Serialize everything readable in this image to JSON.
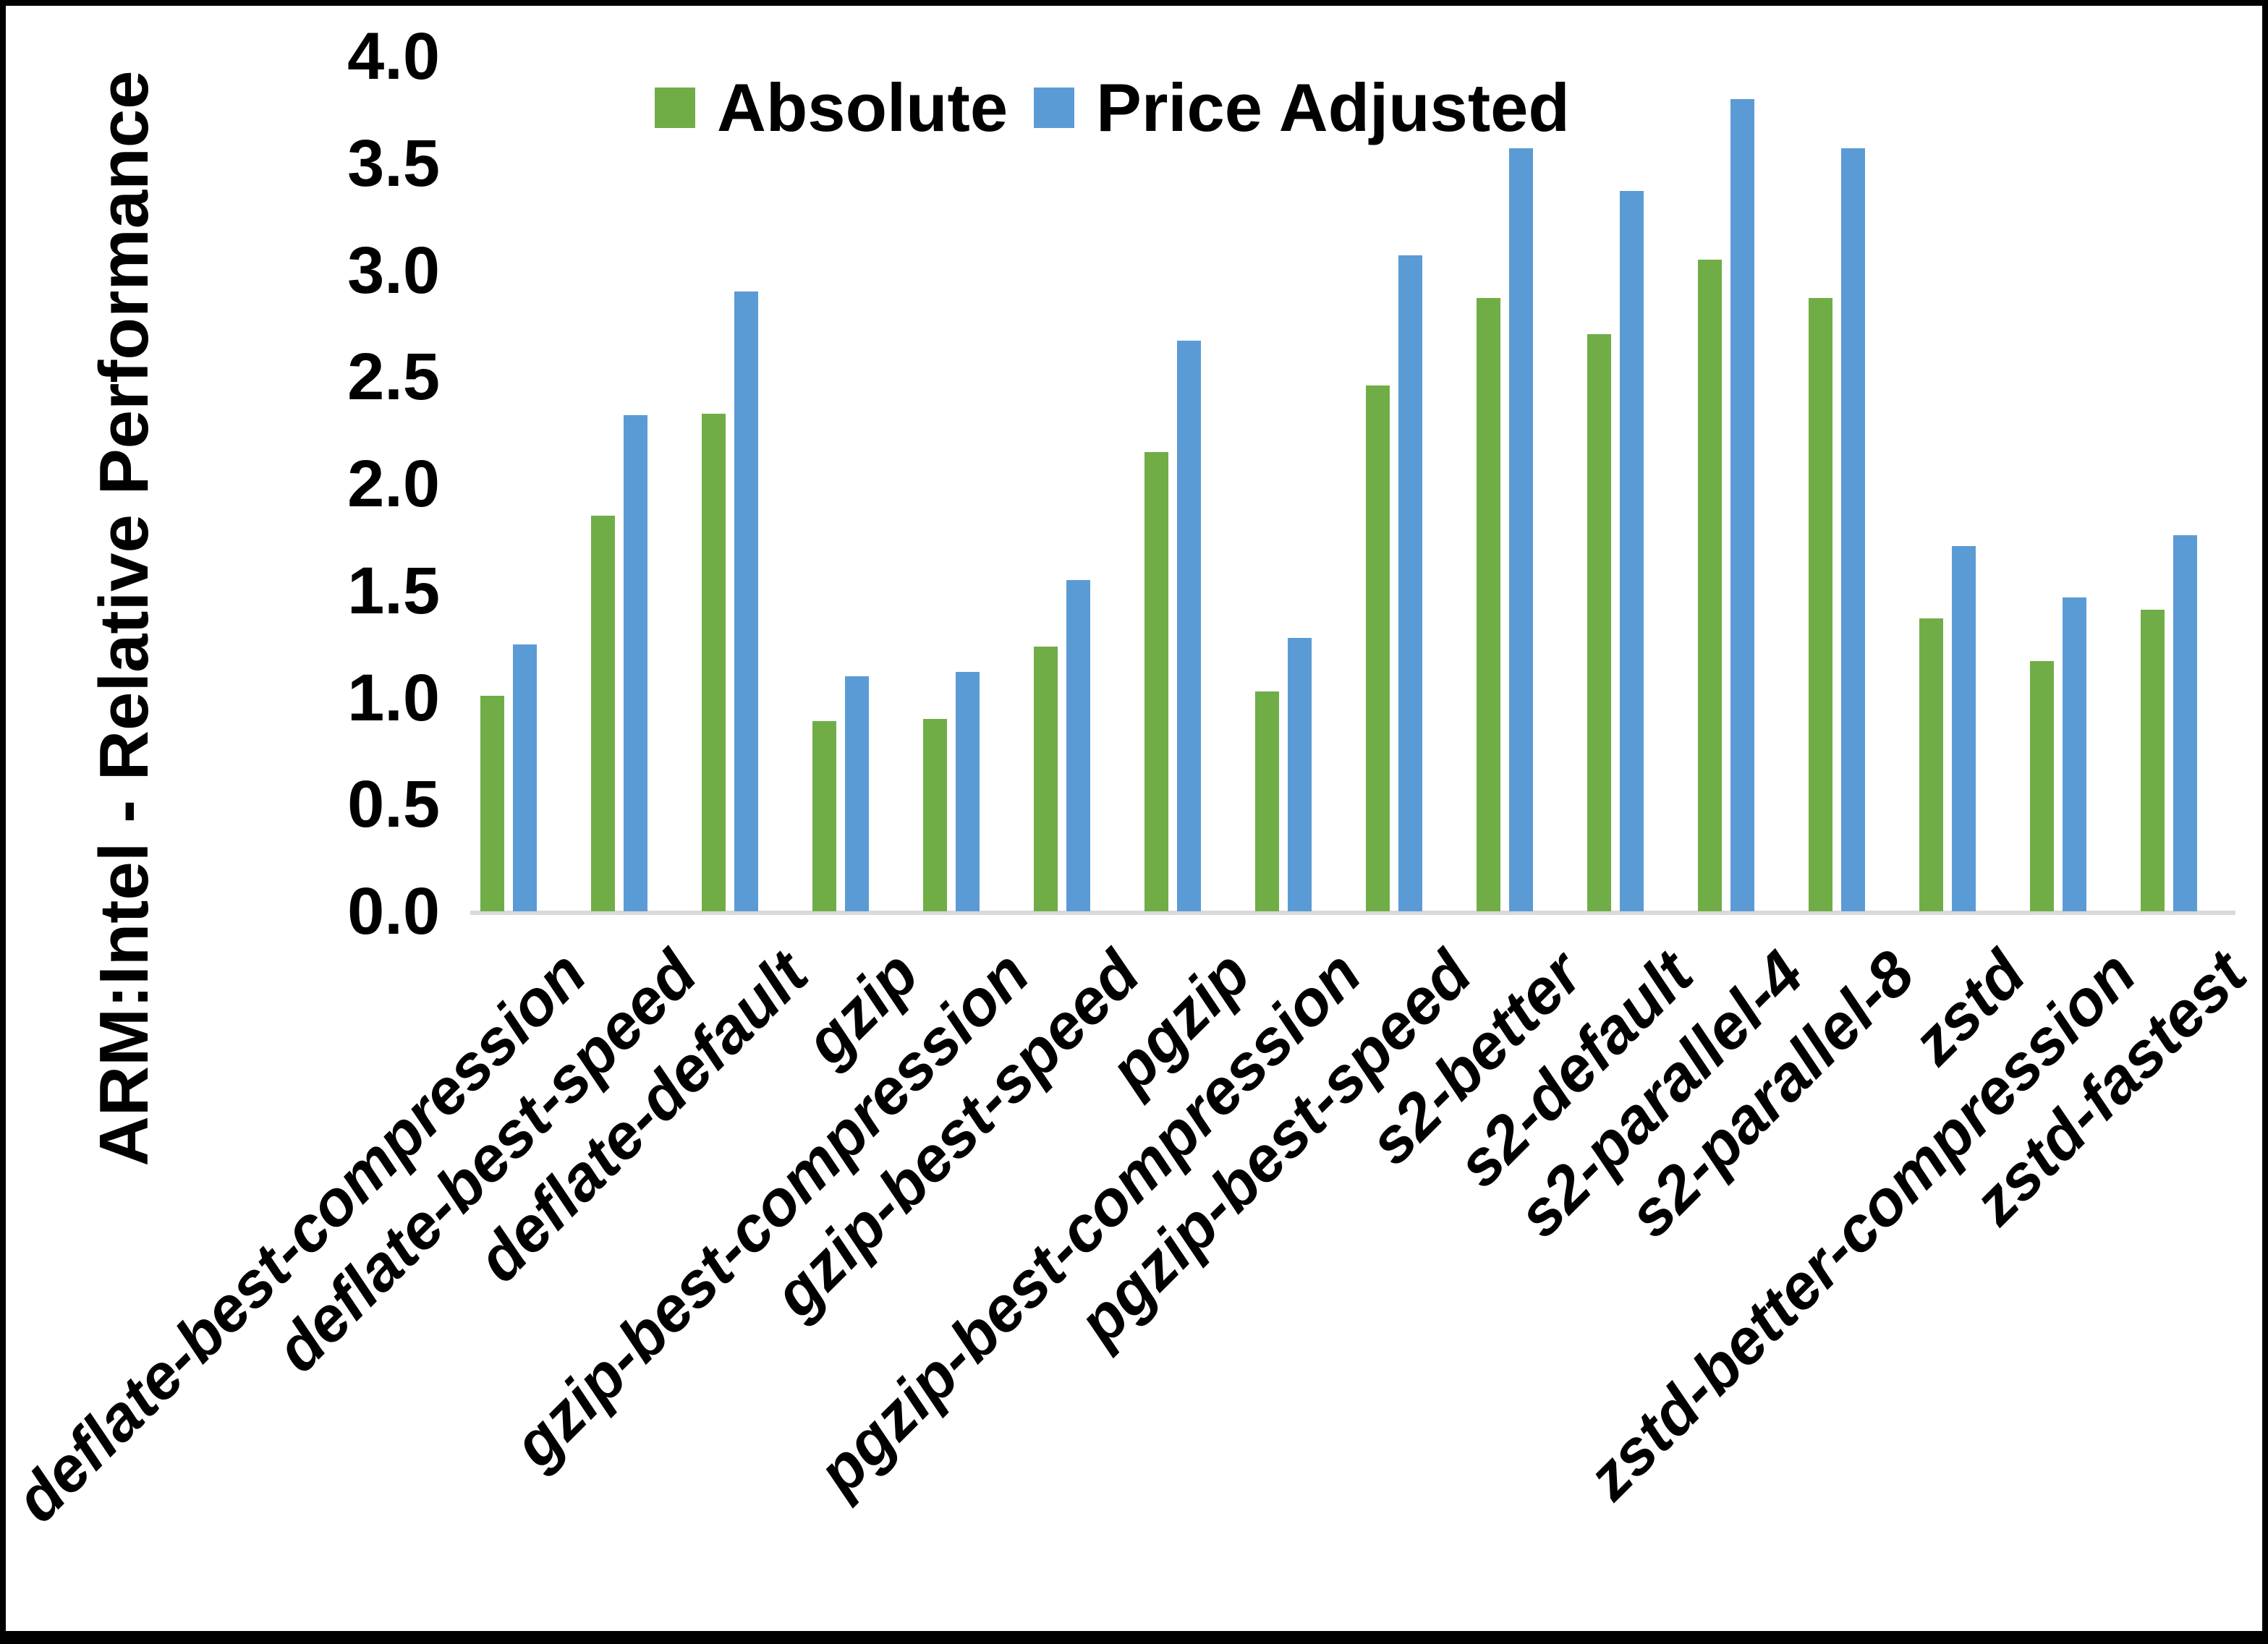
{
  "chart_data": {
    "type": "bar",
    "title": "",
    "ylabel": "ARM:Intel - Relative Performance",
    "xlabel": "",
    "ylim": [
      0.0,
      4.0
    ],
    "ytick_step": 0.5,
    "grid": false,
    "legend_position": "top",
    "axis_line_color": "#D9D9D9",
    "categories": [
      "deflate-best-compression",
      "deflate-best-speed",
      "deflate-default",
      "gzip",
      "gzip-best-compression",
      "gzip-best-speed",
      "pgzip",
      "pgzip-best-compression",
      "pgzip-best-speed",
      "s2-better",
      "s2-default",
      "s2-parallel-4",
      "s2-parallel-8",
      "zstd",
      "zstd-better-compression",
      "zstd-fastest"
    ],
    "series": [
      {
        "name": "Absolute",
        "color": "#70AD47",
        "values": [
          1.01,
          1.85,
          2.33,
          0.89,
          0.9,
          1.24,
          2.15,
          1.03,
          2.46,
          2.87,
          2.7,
          3.05,
          2.87,
          1.37,
          1.17,
          1.41
        ]
      },
      {
        "name": "Price Adjusted",
        "color": "#5B9BD5",
        "values": [
          1.25,
          2.32,
          2.9,
          1.1,
          1.12,
          1.55,
          2.67,
          1.28,
          3.07,
          3.57,
          3.37,
          3.8,
          3.57,
          1.71,
          1.47,
          1.76
        ]
      }
    ]
  }
}
